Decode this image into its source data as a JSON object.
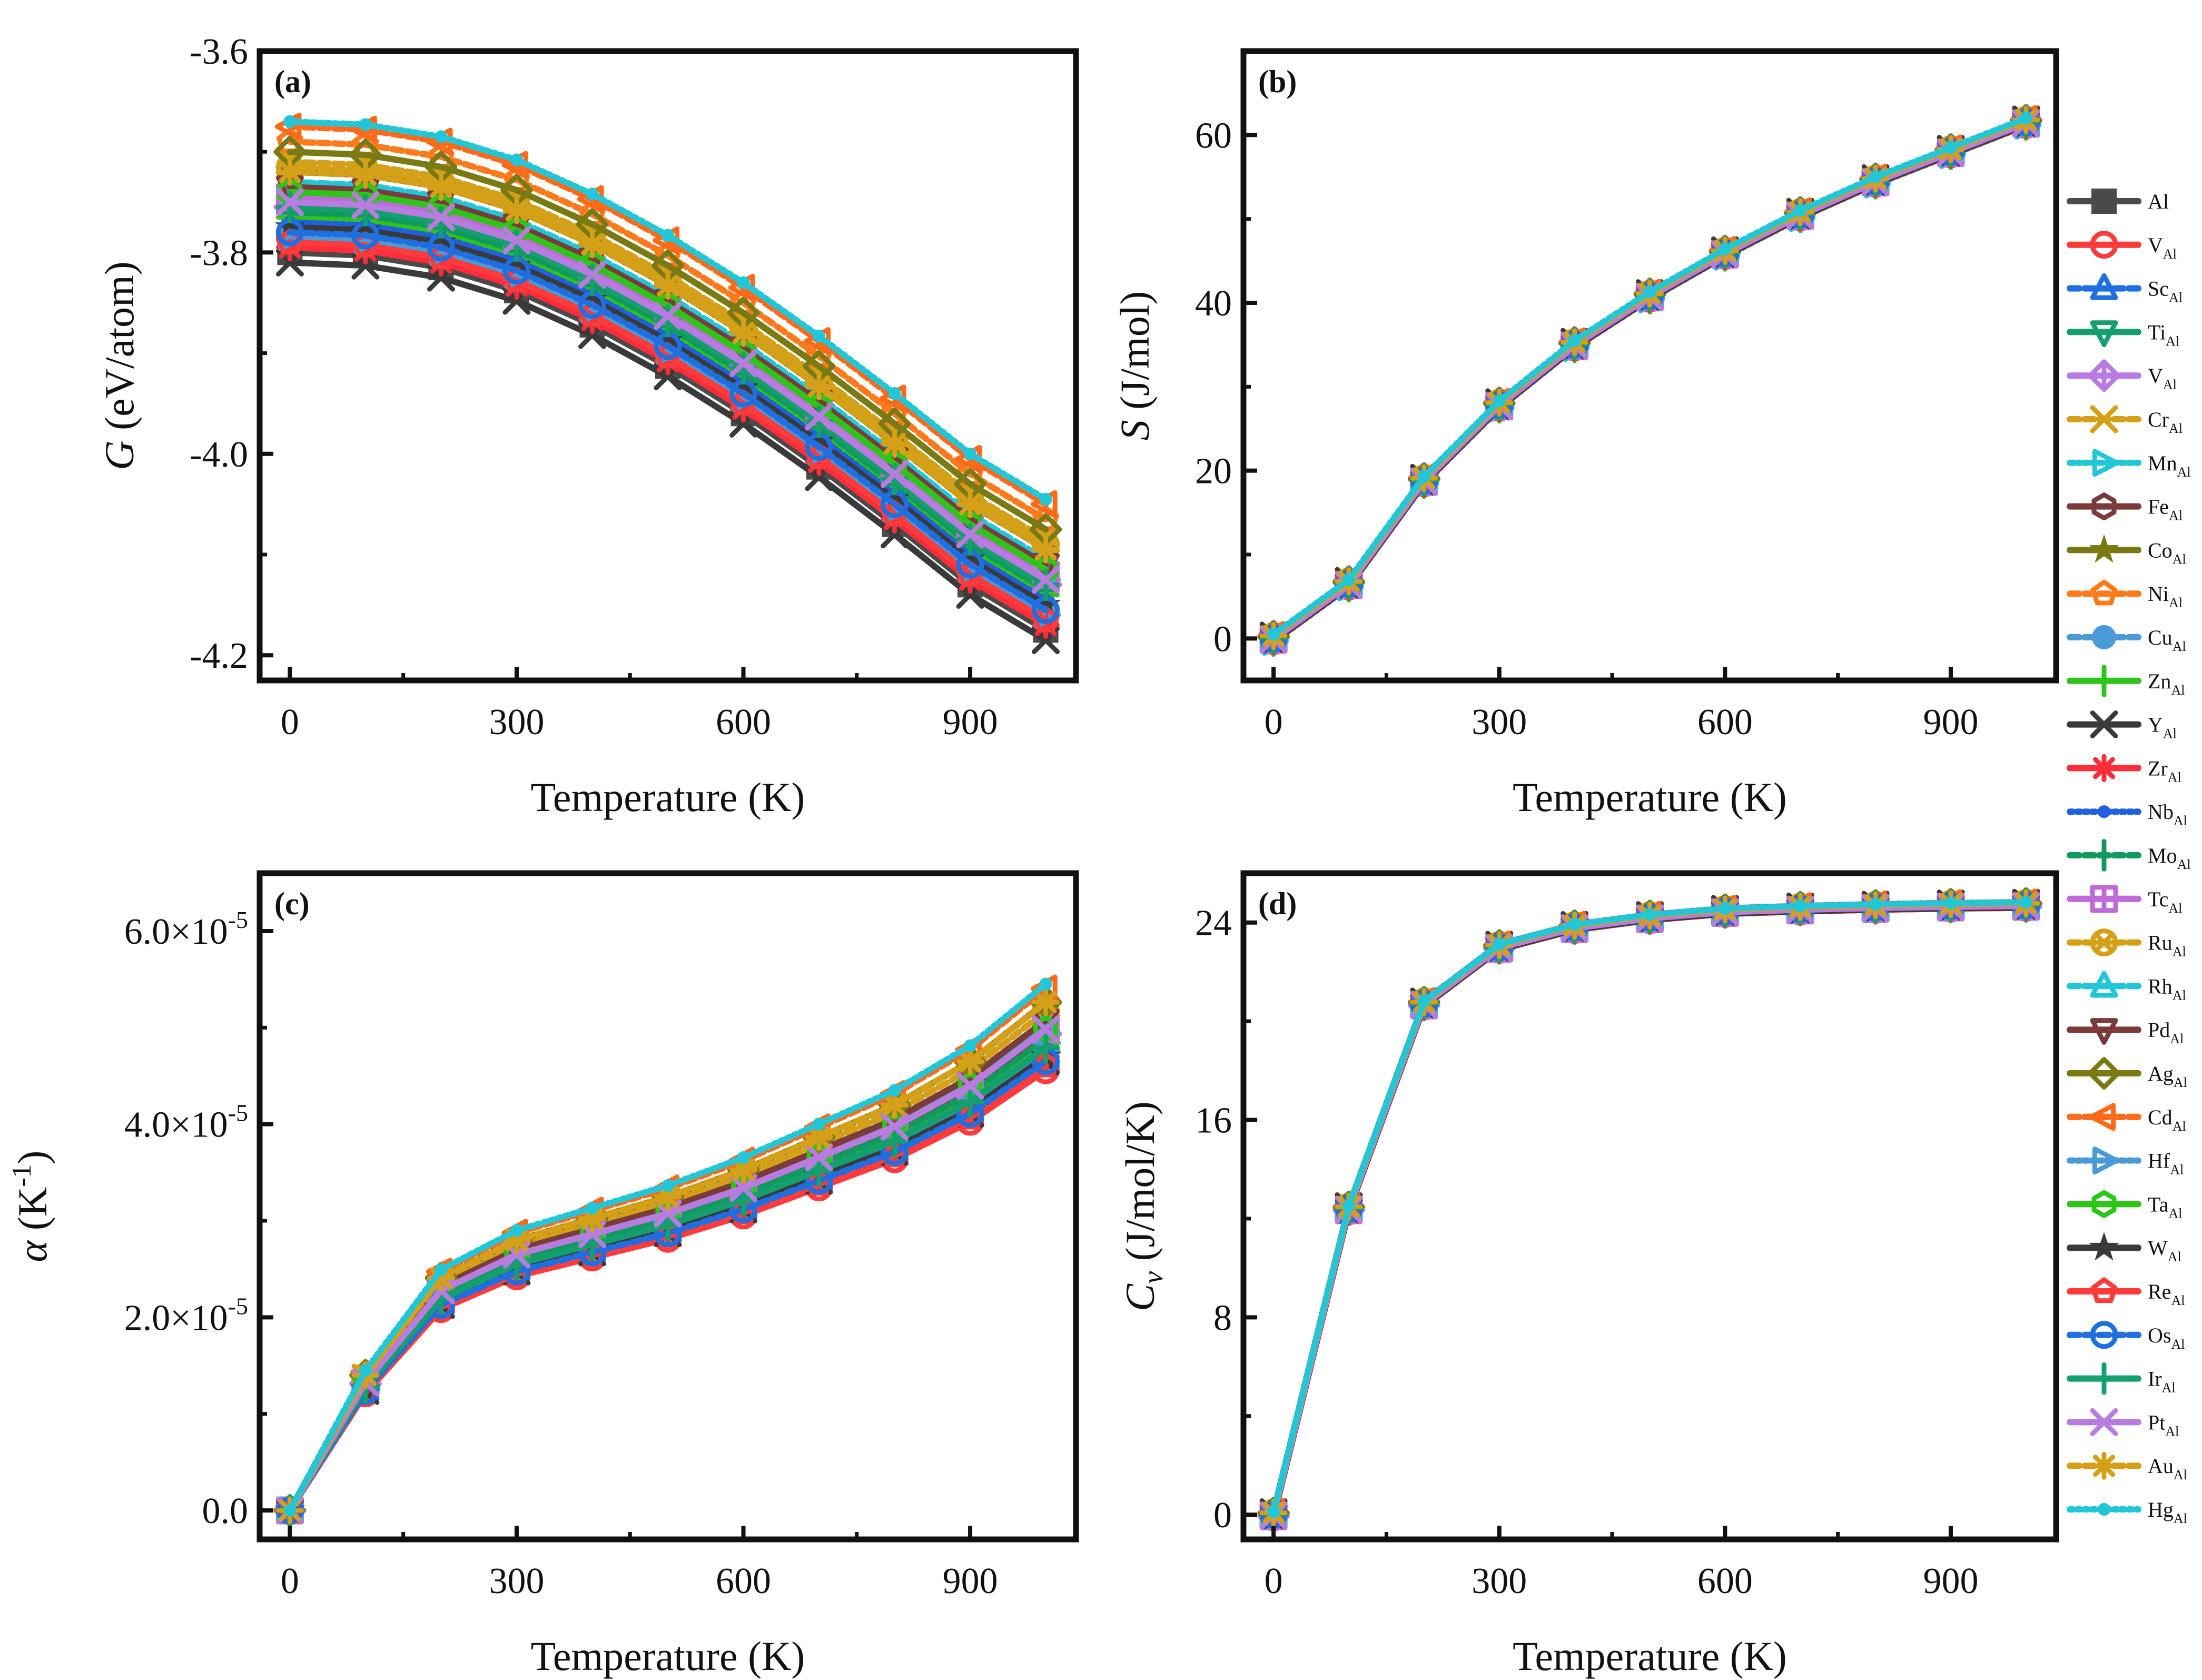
{
  "figure": {
    "legend_title": "",
    "dopants": [
      "Al",
      "V",
      "Sc",
      "Ti",
      "V",
      "Cr",
      "Mn",
      "Fe",
      "Co",
      "Ni",
      "Cu",
      "Zn",
      "Y",
      "Zr",
      "Nb",
      "Mo",
      "Tc",
      "Ru",
      "Rh",
      "Pd",
      "Ag",
      "Cd",
      "Hf",
      "Ta",
      "W",
      "Re",
      "Os",
      "Ir",
      "Pt",
      "Au",
      "Hg"
    ],
    "legend_labels": [
      "Al",
      "V",
      "Sc",
      "Ti",
      "V",
      "Cr",
      "Mn",
      "Fe",
      "Co",
      "Ni",
      "Cu",
      "Zn",
      "Y",
      "Zr",
      "Nb",
      "Mo",
      "Tc",
      "Ru",
      "Rh",
      "Pd",
      "Ag",
      "Cd",
      "Hf",
      "Ta",
      "W",
      "Re",
      "Os",
      "Ir",
      "Pt",
      "Au",
      "Hg"
    ],
    "legend_subscript": "Al",
    "series_colors": [
      "#4a4a4a",
      "#ff3b3b",
      "#1f6fe0",
      "#14a06e",
      "#b87ce0",
      "#d4a017",
      "#22c6d6",
      "#7b3b3b",
      "#7a7a14",
      "#ff7a1a",
      "#4b9ad8",
      "#2ec41a",
      "#3a3a3a",
      "#ff2d3a",
      "#1f5fe0",
      "#109a5e",
      "#c06ad8",
      "#d4a017",
      "#22c6d6",
      "#7b3b3b",
      "#7a7a14",
      "#ff6a1a",
      "#4b9ad8",
      "#2ec41a",
      "#3a3a3a",
      "#ff3b3b",
      "#1f6fe0",
      "#14a06e",
      "#b87ce0",
      "#d4a017",
      "#22c6d6"
    ],
    "series_markers": [
      "square",
      "circle",
      "triangle-up",
      "triangle-down",
      "diamond-plus",
      "x-box",
      "triangle-right",
      "hexagon",
      "star",
      "pentagon",
      "sphere",
      "plus",
      "x",
      "asterisk",
      "dot",
      "plus",
      "square-plus",
      "circle-x",
      "triangle-up",
      "triangle-down",
      "diamond",
      "triangle-left",
      "triangle-right",
      "hexagon",
      "star",
      "pentagon",
      "circle",
      "plus",
      "x",
      "asterisk",
      "dot"
    ],
    "series_dash": [
      "none",
      "none",
      "18,10",
      "none",
      "none",
      "18,10",
      "6,8",
      "none",
      "none",
      "18,10",
      "18,10",
      "none",
      "none",
      "none",
      "6,8",
      "18,10",
      "none",
      "18,10",
      "18,10",
      "none",
      "none",
      "18,10",
      "6,8",
      "none",
      "none",
      "none",
      "18,10",
      "none",
      "none",
      "18,10",
      "6,8"
    ]
  },
  "chart_data": [
    {
      "id": "a",
      "type": "line",
      "panel_label": "(a)",
      "title": "",
      "xlabel": "Temperature (K)",
      "ylabel_symbol": "G",
      "ylabel_rest": " (eV/atom)",
      "x": [
        0,
        100,
        200,
        300,
        400,
        500,
        600,
        700,
        800,
        900,
        1000
      ],
      "xlim": [
        -40,
        1040
      ],
      "ylim": [
        -4.225,
        -3.6
      ],
      "xticks": [
        0,
        300,
        600,
        900
      ],
      "xtick_labels": [
        "0",
        "300",
        "600",
        "900"
      ],
      "yticks": [
        -3.6,
        -3.8,
        -4.0,
        -4.2
      ],
      "ytick_labels": [
        "-3.6",
        "-3.8",
        "-4.0",
        "-4.2"
      ],
      "series_base": [
        -3.8,
        -3.803,
        -3.815,
        -3.838,
        -3.872,
        -3.913,
        -3.96,
        -4.013,
        -4.07,
        -4.13,
        -4.175
      ],
      "series_offsets": [
        0,
        0.015,
        0.03,
        0.05,
        0.045,
        0.09,
        0.05,
        0.06,
        0.08,
        0.11,
        0.02,
        0.035,
        -0.01,
        0.005,
        0.03,
        0.04,
        0.055,
        0.085,
        0.07,
        0.065,
        0.1,
        0.125,
        0.015,
        0.06,
        0.025,
        0.01,
        0.02,
        0.045,
        0.05,
        0.08,
        0.13
      ]
    },
    {
      "id": "b",
      "type": "line",
      "panel_label": "(b)",
      "title": "",
      "xlabel": "Temperature (K)",
      "ylabel_symbol": "S",
      "ylabel_rest": " (J/mol)",
      "x": [
        0,
        100,
        200,
        300,
        400,
        500,
        600,
        700,
        800,
        900,
        1000
      ],
      "xlim": [
        -40,
        1040
      ],
      "ylim": [
        -5,
        70
      ],
      "xticks": [
        0,
        300,
        600,
        900
      ],
      "xtick_labels": [
        "0",
        "300",
        "600",
        "900"
      ],
      "yticks": [
        0,
        20,
        40,
        60
      ],
      "ytick_labels": [
        "0",
        "20",
        "40",
        "60"
      ],
      "series_base": [
        0,
        6.5,
        18.8,
        27.8,
        35.0,
        40.8,
        45.9,
        50.5,
        54.5,
        58.0,
        61.5
      ],
      "series_offsets": [
        0,
        -0.3,
        0.2,
        -0.2,
        0.3,
        0.1,
        -0.4,
        0.4,
        0.15,
        -0.1,
        0.25,
        -0.25,
        0.35,
        -0.35,
        0.05,
        0.2,
        -0.15,
        0.3,
        0.1,
        -0.05,
        0.2,
        0.4,
        -0.2,
        0.15,
        -0.3,
        0.25,
        0,
        0.1,
        -0.1,
        0.3,
        0.5
      ]
    },
    {
      "id": "c",
      "type": "line",
      "panel_label": "(c)",
      "title": "",
      "xlabel": "Temperature (K)",
      "ylabel_symbol": "α",
      "ylabel_rest": " (K",
      "ylabel_sup": "-1",
      "ylabel_close": ")",
      "x": [
        0,
        100,
        200,
        300,
        400,
        500,
        600,
        700,
        800,
        900,
        1000
      ],
      "xlim": [
        -40,
        1040
      ],
      "ylim": [
        -3e-06,
        6.6e-05
      ],
      "xticks": [
        0,
        300,
        600,
        900
      ],
      "xtick_labels": [
        "0",
        "300",
        "600",
        "900"
      ],
      "yticks": [
        0,
        2e-05,
        4e-05,
        6e-05
      ],
      "ytick_mant": [
        "0.0",
        "2.0",
        "4.0",
        "6.0"
      ],
      "ytick_exp": [
        "",
        "-5",
        "-5",
        "-5"
      ],
      "ytick_times": "×10",
      "series_base": [
        0,
        1.25e-05,
        2.15e-05,
        2.5e-05,
        2.7e-05,
        2.9e-05,
        3.15e-05,
        3.45e-05,
        3.75e-05,
        4.15e-05,
        4.7e-05
      ],
      "series_scale": [
        1.0,
        0.97,
        1.0,
        1.02,
        1.05,
        1.1,
        1.03,
        1.05,
        1.08,
        1.12,
        1.0,
        1.03,
        0.99,
        1.0,
        1.02,
        1.04,
        1.06,
        1.1,
        1.07,
        1.08,
        1.12,
        1.15,
        1.01,
        1.06,
        1.0,
        0.98,
        0.99,
        1.02,
        1.06,
        1.12,
        1.16
      ]
    },
    {
      "id": "d",
      "type": "line",
      "panel_label": "(d)",
      "title": "",
      "xlabel": "Temperature (K)",
      "ylabel_symbol": "C",
      "ylabel_sub": "v",
      "ylabel_rest": " (J/mol/K)",
      "x": [
        0,
        100,
        200,
        300,
        400,
        500,
        600,
        700,
        800,
        900,
        1000
      ],
      "xlim": [
        -40,
        1040
      ],
      "ylim": [
        -1,
        26
      ],
      "xticks": [
        0,
        300,
        600,
        900
      ],
      "xtick_labels": [
        "0",
        "300",
        "600",
        "900"
      ],
      "yticks": [
        0,
        8,
        16,
        24
      ],
      "ytick_labels": [
        "0",
        "8",
        "16",
        "24"
      ],
      "series_base": [
        0,
        12.4,
        20.7,
        23.0,
        23.8,
        24.2,
        24.45,
        24.55,
        24.62,
        24.67,
        24.7
      ],
      "series_offsets": [
        0,
        -0.1,
        0.05,
        0.1,
        -0.05,
        0.08,
        0,
        0.12,
        -0.08,
        0.04,
        0.06,
        -0.04,
        0.1,
        -0.1,
        0.02,
        0.05,
        -0.06,
        0.09,
        0.03,
        -0.02,
        0.07,
        0.11,
        -0.05,
        0.04,
        -0.09,
        0.06,
        0,
        0.03,
        -0.03,
        0.08,
        0.12
      ]
    }
  ]
}
